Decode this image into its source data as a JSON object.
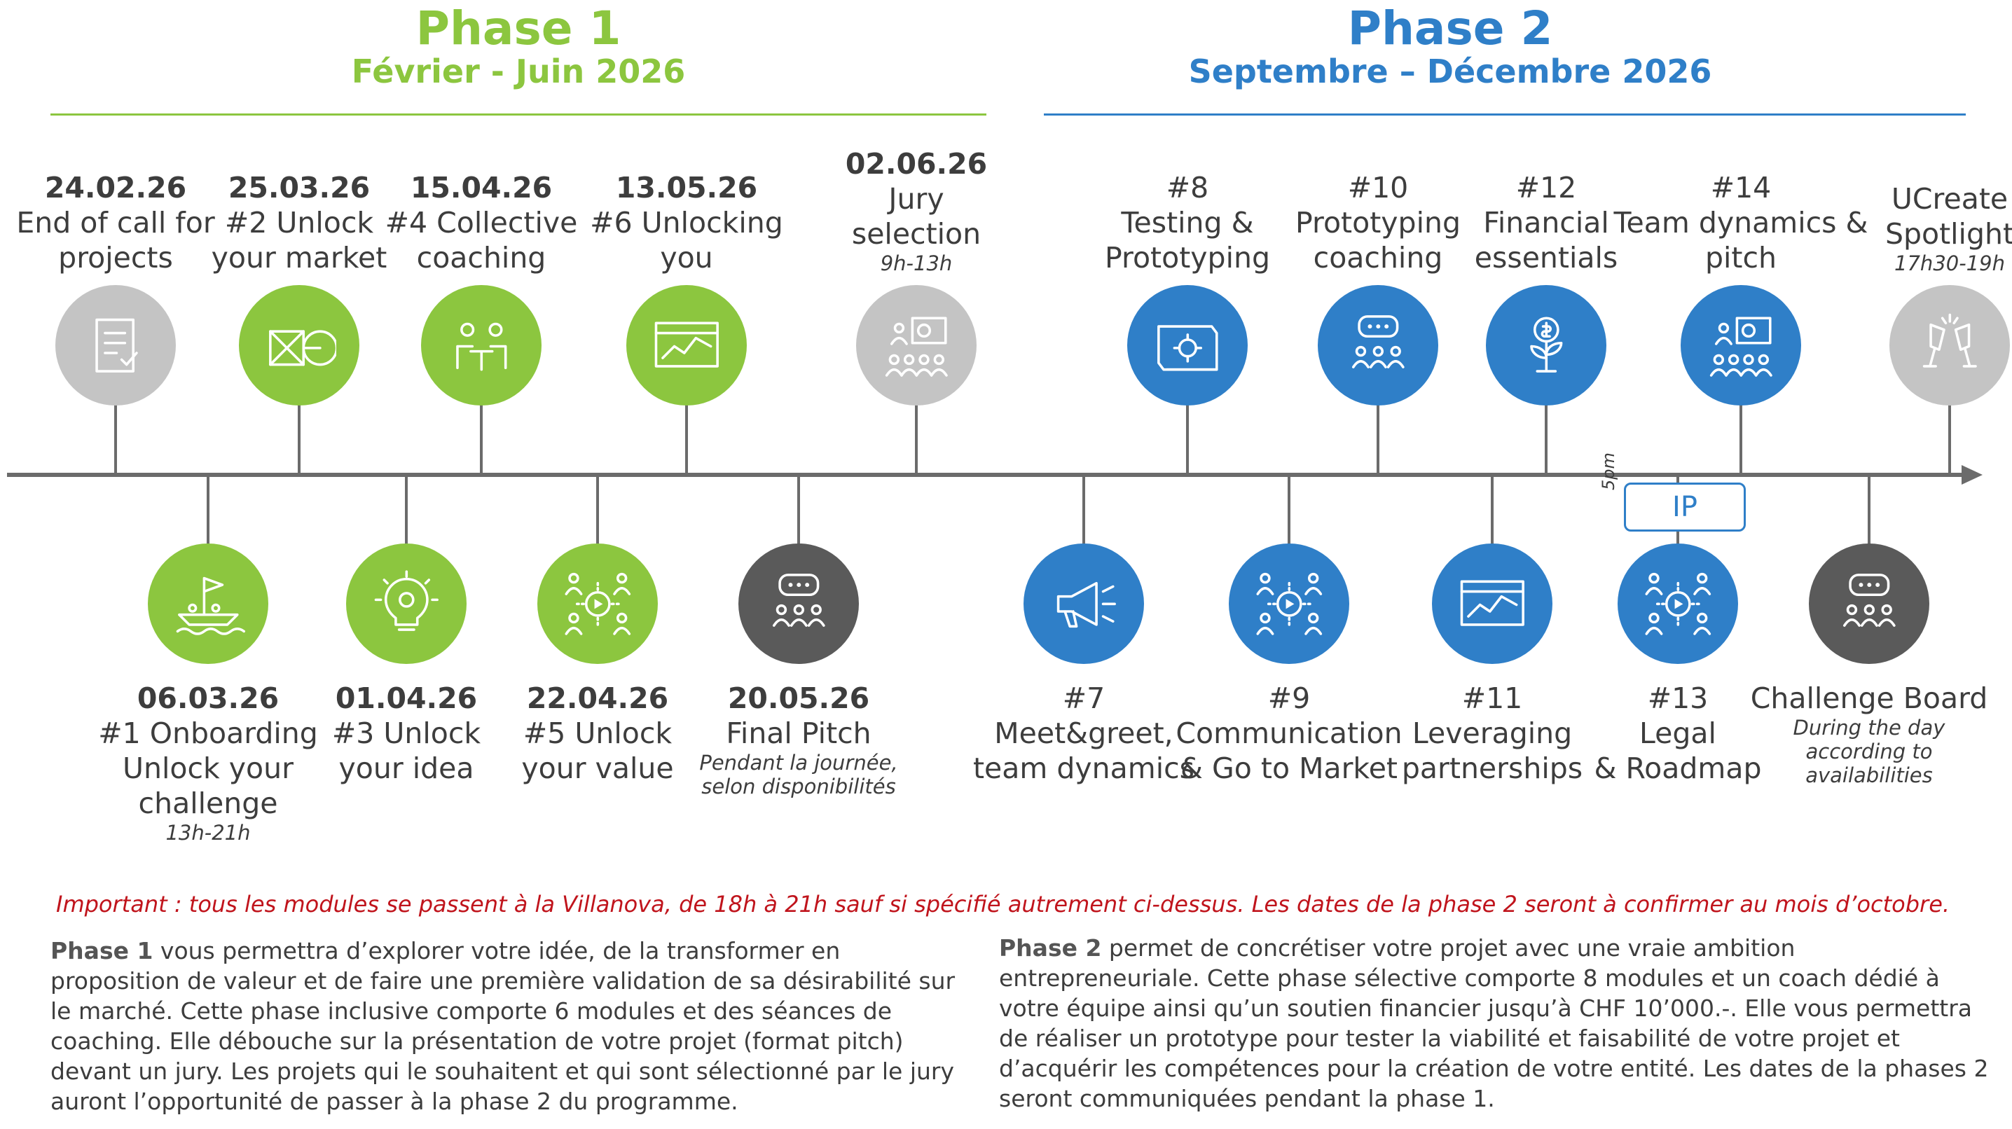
{
  "phase1": {
    "name": "Phase 1",
    "dates": "Février - Juin 2026"
  },
  "phase2": {
    "name": "Phase 2",
    "dates": "Septembre – Décembre 2026"
  },
  "colors": {
    "green": "#8cc63f",
    "blue": "#2f7fc8",
    "gray": "#c4c4c4",
    "dark": "#5a5a5a",
    "red": "#c0141c"
  },
  "top_items": [
    {
      "date": "24.02.26",
      "title": [
        "End of call for",
        "projects"
      ],
      "note": "",
      "icon": "document-checklist-icon",
      "color": "gray"
    },
    {
      "date": "25.03.26",
      "title": [
        "#2 Unlock",
        "your market"
      ],
      "note": "",
      "icon": "square-circle-icon",
      "color": "green"
    },
    {
      "date": "15.04.26",
      "title": [
        "#4 Collective",
        "coaching"
      ],
      "note": "",
      "icon": "meeting-table-icon",
      "color": "green"
    },
    {
      "date": "13.05.26",
      "title": [
        "#6 Unlocking",
        "you"
      ],
      "note": "",
      "icon": "board-chart-icon",
      "color": "green"
    },
    {
      "date": "02.06.26",
      "title": [
        "Jury",
        "selection"
      ],
      "note": "9h-13h",
      "icon": "jury-presentation-icon",
      "color": "gray"
    },
    {
      "date": "",
      "title": [
        "#8",
        "Testing &",
        "Prototyping"
      ],
      "note": "",
      "icon": "blueprint-gear-icon",
      "color": "blue"
    },
    {
      "date": "",
      "title": [
        "#10",
        "Prototyping",
        "coaching"
      ],
      "note": "",
      "icon": "chat-people-icon",
      "color": "blue"
    },
    {
      "date": "",
      "title": [
        "#12",
        "Financial",
        "essentials"
      ],
      "note": "",
      "icon": "money-plant-icon",
      "color": "blue"
    },
    {
      "date": "",
      "title": [
        "#14",
        "Team dynamics &",
        "pitch"
      ],
      "note": "",
      "icon": "jury-presentation-icon",
      "color": "blue"
    },
    {
      "date": "",
      "title": [
        "UCreate",
        "Spotlight"
      ],
      "note": "17h30-19h",
      "icon": "champagne-toast-icon",
      "color": "gray"
    }
  ],
  "bottom_items": [
    {
      "date": "06.03.26",
      "title": [
        "#1 Onboarding",
        "Unlock your",
        "challenge"
      ],
      "note": "13h-21h",
      "icon": "boat-flag-icon",
      "color": "green"
    },
    {
      "date": "01.04.26",
      "title": [
        "#3 Unlock",
        "your idea"
      ],
      "note": "",
      "icon": "lightbulb-gear-icon",
      "color": "green"
    },
    {
      "date": "22.04.26",
      "title": [
        "#5 Unlock",
        "your value"
      ],
      "note": "",
      "icon": "team-gear-icon",
      "color": "green"
    },
    {
      "date": "20.05.26",
      "title": [
        "Final Pitch"
      ],
      "note": "Pendant la journée, selon disponibilités",
      "icon": "chat-people-icon",
      "color": "dark"
    },
    {
      "date": "",
      "title": [
        "#7",
        "Meet&greet,",
        "team dynamics"
      ],
      "note": "",
      "icon": "megaphone-icon",
      "color": "blue"
    },
    {
      "date": "",
      "title": [
        "#9",
        "Communication",
        "& Go to Market"
      ],
      "note": "",
      "icon": "team-gear-icon",
      "color": "blue"
    },
    {
      "date": "",
      "title": [
        "#11",
        "Leveraging",
        "partnerships"
      ],
      "note": "",
      "icon": "board-chart-icon",
      "color": "blue"
    },
    {
      "date": "",
      "title": [
        "#13",
        "Legal",
        "& Roadmap"
      ],
      "note": "",
      "icon": "team-gear-icon",
      "color": "blue"
    },
    {
      "date": "",
      "title": [
        "Challenge Board"
      ],
      "note": "During the day according to availabilities",
      "icon": "chat-people-icon",
      "color": "dark"
    }
  ],
  "ip_badge": {
    "label": "IP",
    "time": "5pm"
  },
  "important": "Important : tous les modules se passent à la Villanova, de 18h à 21h sauf si spécifié autrement ci-dessus. Les dates de la phase 2 seront à confirmer au mois d’octobre.",
  "paragraph1": {
    "lead": "Phase 1",
    "text": " vous permettra d’explorer votre idée, de la transformer en proposition de valeur et de faire une première validation de sa désirabilité sur le marché. Cette phase inclusive comporte 6 modules et des séances de coaching. Elle débouche sur la présentation de votre projet (format pitch) devant un jury. Les projets qui le souhaitent et qui sont sélectionné par le jury auront l’opportunité de passer à la phase 2 du programme."
  },
  "paragraph2": {
    "lead": "Phase 2",
    "text": " permet de concrétiser votre projet avec une vraie ambition entrepreneuriale. Cette phase sélective comporte 8 modules et un coach dédié à votre équipe ainsi qu’un soutien financier jusqu’à CHF 10’000.-. Elle vous permettra de réaliser un prototype pour tester la viabilité   et faisabilité de votre projet et d’acquérir les compétences pour la création de votre entité. Les dates de la phases 2 seront communiquées pendant la phase 1."
  }
}
